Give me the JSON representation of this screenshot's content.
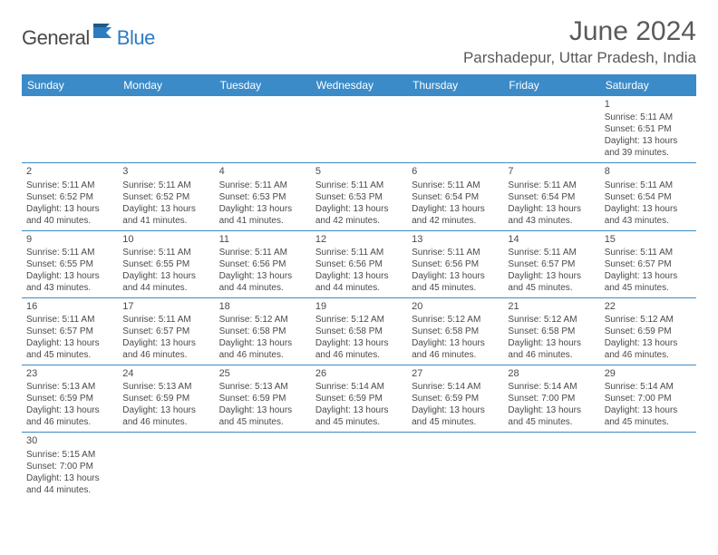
{
  "brand": {
    "part1": "General",
    "part2": "Blue"
  },
  "title": "June 2024",
  "location": "Parshadepur, Uttar Pradesh, India",
  "colors": {
    "header_bg": "#3b8bc8",
    "header_text": "#ffffff",
    "text": "#4a4a4a",
    "line": "#3b8bc8",
    "brand_blue": "#2e7cc0",
    "page_bg": "#ffffff"
  },
  "weekdays": [
    "Sunday",
    "Monday",
    "Tuesday",
    "Wednesday",
    "Thursday",
    "Friday",
    "Saturday"
  ],
  "weeks": [
    [
      null,
      null,
      null,
      null,
      null,
      null,
      {
        "n": "1",
        "sr": "Sunrise: 5:11 AM",
        "ss": "Sunset: 6:51 PM",
        "d1": "Daylight: 13 hours",
        "d2": "and 39 minutes."
      }
    ],
    [
      {
        "n": "2",
        "sr": "Sunrise: 5:11 AM",
        "ss": "Sunset: 6:52 PM",
        "d1": "Daylight: 13 hours",
        "d2": "and 40 minutes."
      },
      {
        "n": "3",
        "sr": "Sunrise: 5:11 AM",
        "ss": "Sunset: 6:52 PM",
        "d1": "Daylight: 13 hours",
        "d2": "and 41 minutes."
      },
      {
        "n": "4",
        "sr": "Sunrise: 5:11 AM",
        "ss": "Sunset: 6:53 PM",
        "d1": "Daylight: 13 hours",
        "d2": "and 41 minutes."
      },
      {
        "n": "5",
        "sr": "Sunrise: 5:11 AM",
        "ss": "Sunset: 6:53 PM",
        "d1": "Daylight: 13 hours",
        "d2": "and 42 minutes."
      },
      {
        "n": "6",
        "sr": "Sunrise: 5:11 AM",
        "ss": "Sunset: 6:54 PM",
        "d1": "Daylight: 13 hours",
        "d2": "and 42 minutes."
      },
      {
        "n": "7",
        "sr": "Sunrise: 5:11 AM",
        "ss": "Sunset: 6:54 PM",
        "d1": "Daylight: 13 hours",
        "d2": "and 43 minutes."
      },
      {
        "n": "8",
        "sr": "Sunrise: 5:11 AM",
        "ss": "Sunset: 6:54 PM",
        "d1": "Daylight: 13 hours",
        "d2": "and 43 minutes."
      }
    ],
    [
      {
        "n": "9",
        "sr": "Sunrise: 5:11 AM",
        "ss": "Sunset: 6:55 PM",
        "d1": "Daylight: 13 hours",
        "d2": "and 43 minutes."
      },
      {
        "n": "10",
        "sr": "Sunrise: 5:11 AM",
        "ss": "Sunset: 6:55 PM",
        "d1": "Daylight: 13 hours",
        "d2": "and 44 minutes."
      },
      {
        "n": "11",
        "sr": "Sunrise: 5:11 AM",
        "ss": "Sunset: 6:56 PM",
        "d1": "Daylight: 13 hours",
        "d2": "and 44 minutes."
      },
      {
        "n": "12",
        "sr": "Sunrise: 5:11 AM",
        "ss": "Sunset: 6:56 PM",
        "d1": "Daylight: 13 hours",
        "d2": "and 44 minutes."
      },
      {
        "n": "13",
        "sr": "Sunrise: 5:11 AM",
        "ss": "Sunset: 6:56 PM",
        "d1": "Daylight: 13 hours",
        "d2": "and 45 minutes."
      },
      {
        "n": "14",
        "sr": "Sunrise: 5:11 AM",
        "ss": "Sunset: 6:57 PM",
        "d1": "Daylight: 13 hours",
        "d2": "and 45 minutes."
      },
      {
        "n": "15",
        "sr": "Sunrise: 5:11 AM",
        "ss": "Sunset: 6:57 PM",
        "d1": "Daylight: 13 hours",
        "d2": "and 45 minutes."
      }
    ],
    [
      {
        "n": "16",
        "sr": "Sunrise: 5:11 AM",
        "ss": "Sunset: 6:57 PM",
        "d1": "Daylight: 13 hours",
        "d2": "and 45 minutes."
      },
      {
        "n": "17",
        "sr": "Sunrise: 5:11 AM",
        "ss": "Sunset: 6:57 PM",
        "d1": "Daylight: 13 hours",
        "d2": "and 46 minutes."
      },
      {
        "n": "18",
        "sr": "Sunrise: 5:12 AM",
        "ss": "Sunset: 6:58 PM",
        "d1": "Daylight: 13 hours",
        "d2": "and 46 minutes."
      },
      {
        "n": "19",
        "sr": "Sunrise: 5:12 AM",
        "ss": "Sunset: 6:58 PM",
        "d1": "Daylight: 13 hours",
        "d2": "and 46 minutes."
      },
      {
        "n": "20",
        "sr": "Sunrise: 5:12 AM",
        "ss": "Sunset: 6:58 PM",
        "d1": "Daylight: 13 hours",
        "d2": "and 46 minutes."
      },
      {
        "n": "21",
        "sr": "Sunrise: 5:12 AM",
        "ss": "Sunset: 6:58 PM",
        "d1": "Daylight: 13 hours",
        "d2": "and 46 minutes."
      },
      {
        "n": "22",
        "sr": "Sunrise: 5:12 AM",
        "ss": "Sunset: 6:59 PM",
        "d1": "Daylight: 13 hours",
        "d2": "and 46 minutes."
      }
    ],
    [
      {
        "n": "23",
        "sr": "Sunrise: 5:13 AM",
        "ss": "Sunset: 6:59 PM",
        "d1": "Daylight: 13 hours",
        "d2": "and 46 minutes."
      },
      {
        "n": "24",
        "sr": "Sunrise: 5:13 AM",
        "ss": "Sunset: 6:59 PM",
        "d1": "Daylight: 13 hours",
        "d2": "and 46 minutes."
      },
      {
        "n": "25",
        "sr": "Sunrise: 5:13 AM",
        "ss": "Sunset: 6:59 PM",
        "d1": "Daylight: 13 hours",
        "d2": "and 45 minutes."
      },
      {
        "n": "26",
        "sr": "Sunrise: 5:14 AM",
        "ss": "Sunset: 6:59 PM",
        "d1": "Daylight: 13 hours",
        "d2": "and 45 minutes."
      },
      {
        "n": "27",
        "sr": "Sunrise: 5:14 AM",
        "ss": "Sunset: 6:59 PM",
        "d1": "Daylight: 13 hours",
        "d2": "and 45 minutes."
      },
      {
        "n": "28",
        "sr": "Sunrise: 5:14 AM",
        "ss": "Sunset: 7:00 PM",
        "d1": "Daylight: 13 hours",
        "d2": "and 45 minutes."
      },
      {
        "n": "29",
        "sr": "Sunrise: 5:14 AM",
        "ss": "Sunset: 7:00 PM",
        "d1": "Daylight: 13 hours",
        "d2": "and 45 minutes."
      }
    ],
    [
      {
        "n": "30",
        "sr": "Sunrise: 5:15 AM",
        "ss": "Sunset: 7:00 PM",
        "d1": "Daylight: 13 hours",
        "d2": "and 44 minutes."
      },
      null,
      null,
      null,
      null,
      null,
      null
    ]
  ]
}
